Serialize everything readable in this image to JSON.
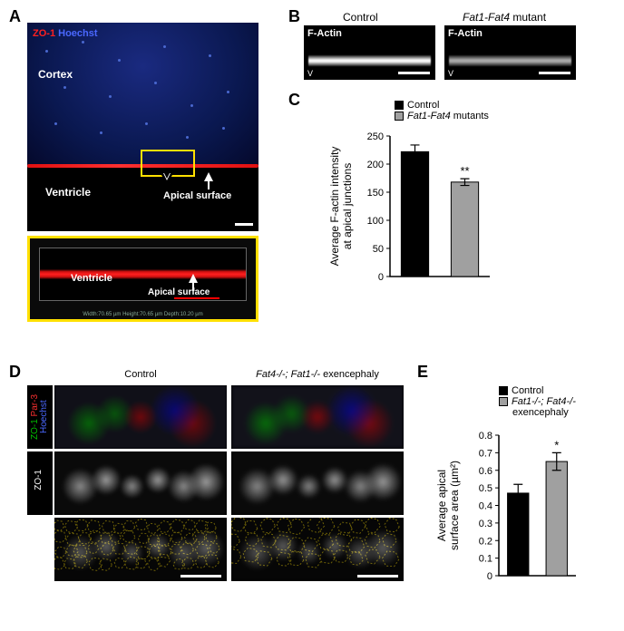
{
  "panelA": {
    "label": "A",
    "stain_label_pre": "ZO-1 ",
    "stain_label_post": "Hoechst",
    "stain_colors": {
      "zo1": "#ff2020",
      "hoechst": "#4a68ff"
    },
    "cortex_label": "Cortex",
    "ventricle_label": "Ventricle",
    "apical_label": "Apical surface",
    "zoom_ventricle": "Ventricle",
    "zoom_apical": "Apical surface",
    "zoom_dims": "Width:70.65 µm  Height:70.65 µm  Depth:10.20 µm",
    "scalebar_red": "#ff0000"
  },
  "panelB": {
    "label": "B",
    "control_title": "Control",
    "mutant_title_pre": "Fat1-Fat4",
    "mutant_title_post": " mutant",
    "stain_label": "F-Actin",
    "v_label": "V",
    "background": "#000000",
    "band_color_ctrl": "#eeeeee",
    "band_color_mut": "#cccccc"
  },
  "panelC": {
    "label": "C",
    "legend": {
      "control": "Control",
      "mutants_pre": "Fat1-Fat4",
      "mutants_post": " mutants"
    },
    "legend_colors": {
      "control": "#000000",
      "mutants": "#a0a0a0"
    },
    "chart": {
      "type": "bar",
      "ylabel": "Average F-actin intensity\nat apical junctions",
      "ylim": [
        0,
        250
      ],
      "ytick_step": 50,
      "yticks": [
        0,
        50,
        100,
        150,
        200,
        250
      ],
      "categories": [
        "Control",
        "Fat1-Fat4 mutants"
      ],
      "values": [
        222,
        168
      ],
      "errors": [
        12,
        6
      ],
      "bar_colors": [
        "#000000",
        "#a0a0a0"
      ],
      "bar_width": 0.55,
      "sig_marker": "**",
      "sig_index": 1,
      "axis_color": "#000000",
      "label_fontsize": 12,
      "tick_fontsize": 11
    }
  },
  "panelD": {
    "label": "D",
    "control_title": "Control",
    "mutant_title_pre": "Fat4-/-; Fat1-/-",
    "mutant_title_post": " exencephaly",
    "side_merge": {
      "zo1": "ZO-1",
      "par3": "Par-3",
      "hoechst": "Hoechst"
    },
    "side_merge_colors": {
      "zo1": "#00c000",
      "par3": "#ff3030",
      "hoechst": "#4a68ff"
    },
    "side_zo1": "ZO-1",
    "trace_color": "#ffe000",
    "background": "#000000"
  },
  "panelE": {
    "label": "E",
    "legend": {
      "control": "Control",
      "mutant_pre": "Fat1-/-; Fat4-/-",
      "mutant_post": "exencephaly"
    },
    "legend_colors": {
      "control": "#000000",
      "mutant": "#a0a0a0"
    },
    "chart": {
      "type": "bar",
      "ylabel": "Average apical\nsurface area (µm²)",
      "ylim": [
        0,
        0.8
      ],
      "ytick_step": 0.1,
      "yticks": [
        0,
        0.1,
        0.2,
        0.3,
        0.4,
        0.5,
        0.6,
        0.7,
        0.8
      ],
      "categories": [
        "Control",
        "Fat1-/-; Fat4-/- exencephaly"
      ],
      "values": [
        0.47,
        0.65
      ],
      "errors": [
        0.05,
        0.05
      ],
      "bar_colors": [
        "#000000",
        "#a0a0a0"
      ],
      "bar_width": 0.55,
      "sig_marker": "*",
      "sig_index": 1,
      "axis_color": "#000000",
      "label_fontsize": 12,
      "tick_fontsize": 11
    }
  }
}
